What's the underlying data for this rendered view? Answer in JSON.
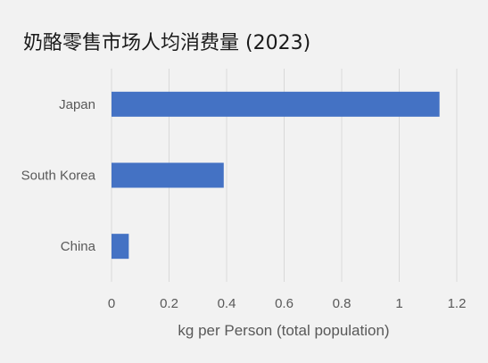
{
  "chart_data": {
    "type": "bar",
    "orientation": "horizontal",
    "title": "奶酪零售市场人均消费量 (2023)",
    "categories": [
      "Japan",
      "South Korea",
      "China"
    ],
    "series": [
      {
        "values": [
          1.14,
          0.39,
          0.06
        ]
      }
    ],
    "xlabel": "kg per Person (total population)",
    "ylabel": "",
    "xlim": [
      0,
      1.2
    ],
    "xticks": [
      0,
      0.2,
      0.4,
      0.6,
      0.8,
      1,
      1.2
    ],
    "xtick_labels": [
      "0",
      "0.2",
      "0.4",
      "0.6",
      "0.8",
      "1",
      "1.2"
    ],
    "grid": "vertical",
    "legend": "none",
    "bar_color": "#4472c4",
    "grid_color": "#d9d9d9",
    "background": "#f2f2f2"
  }
}
